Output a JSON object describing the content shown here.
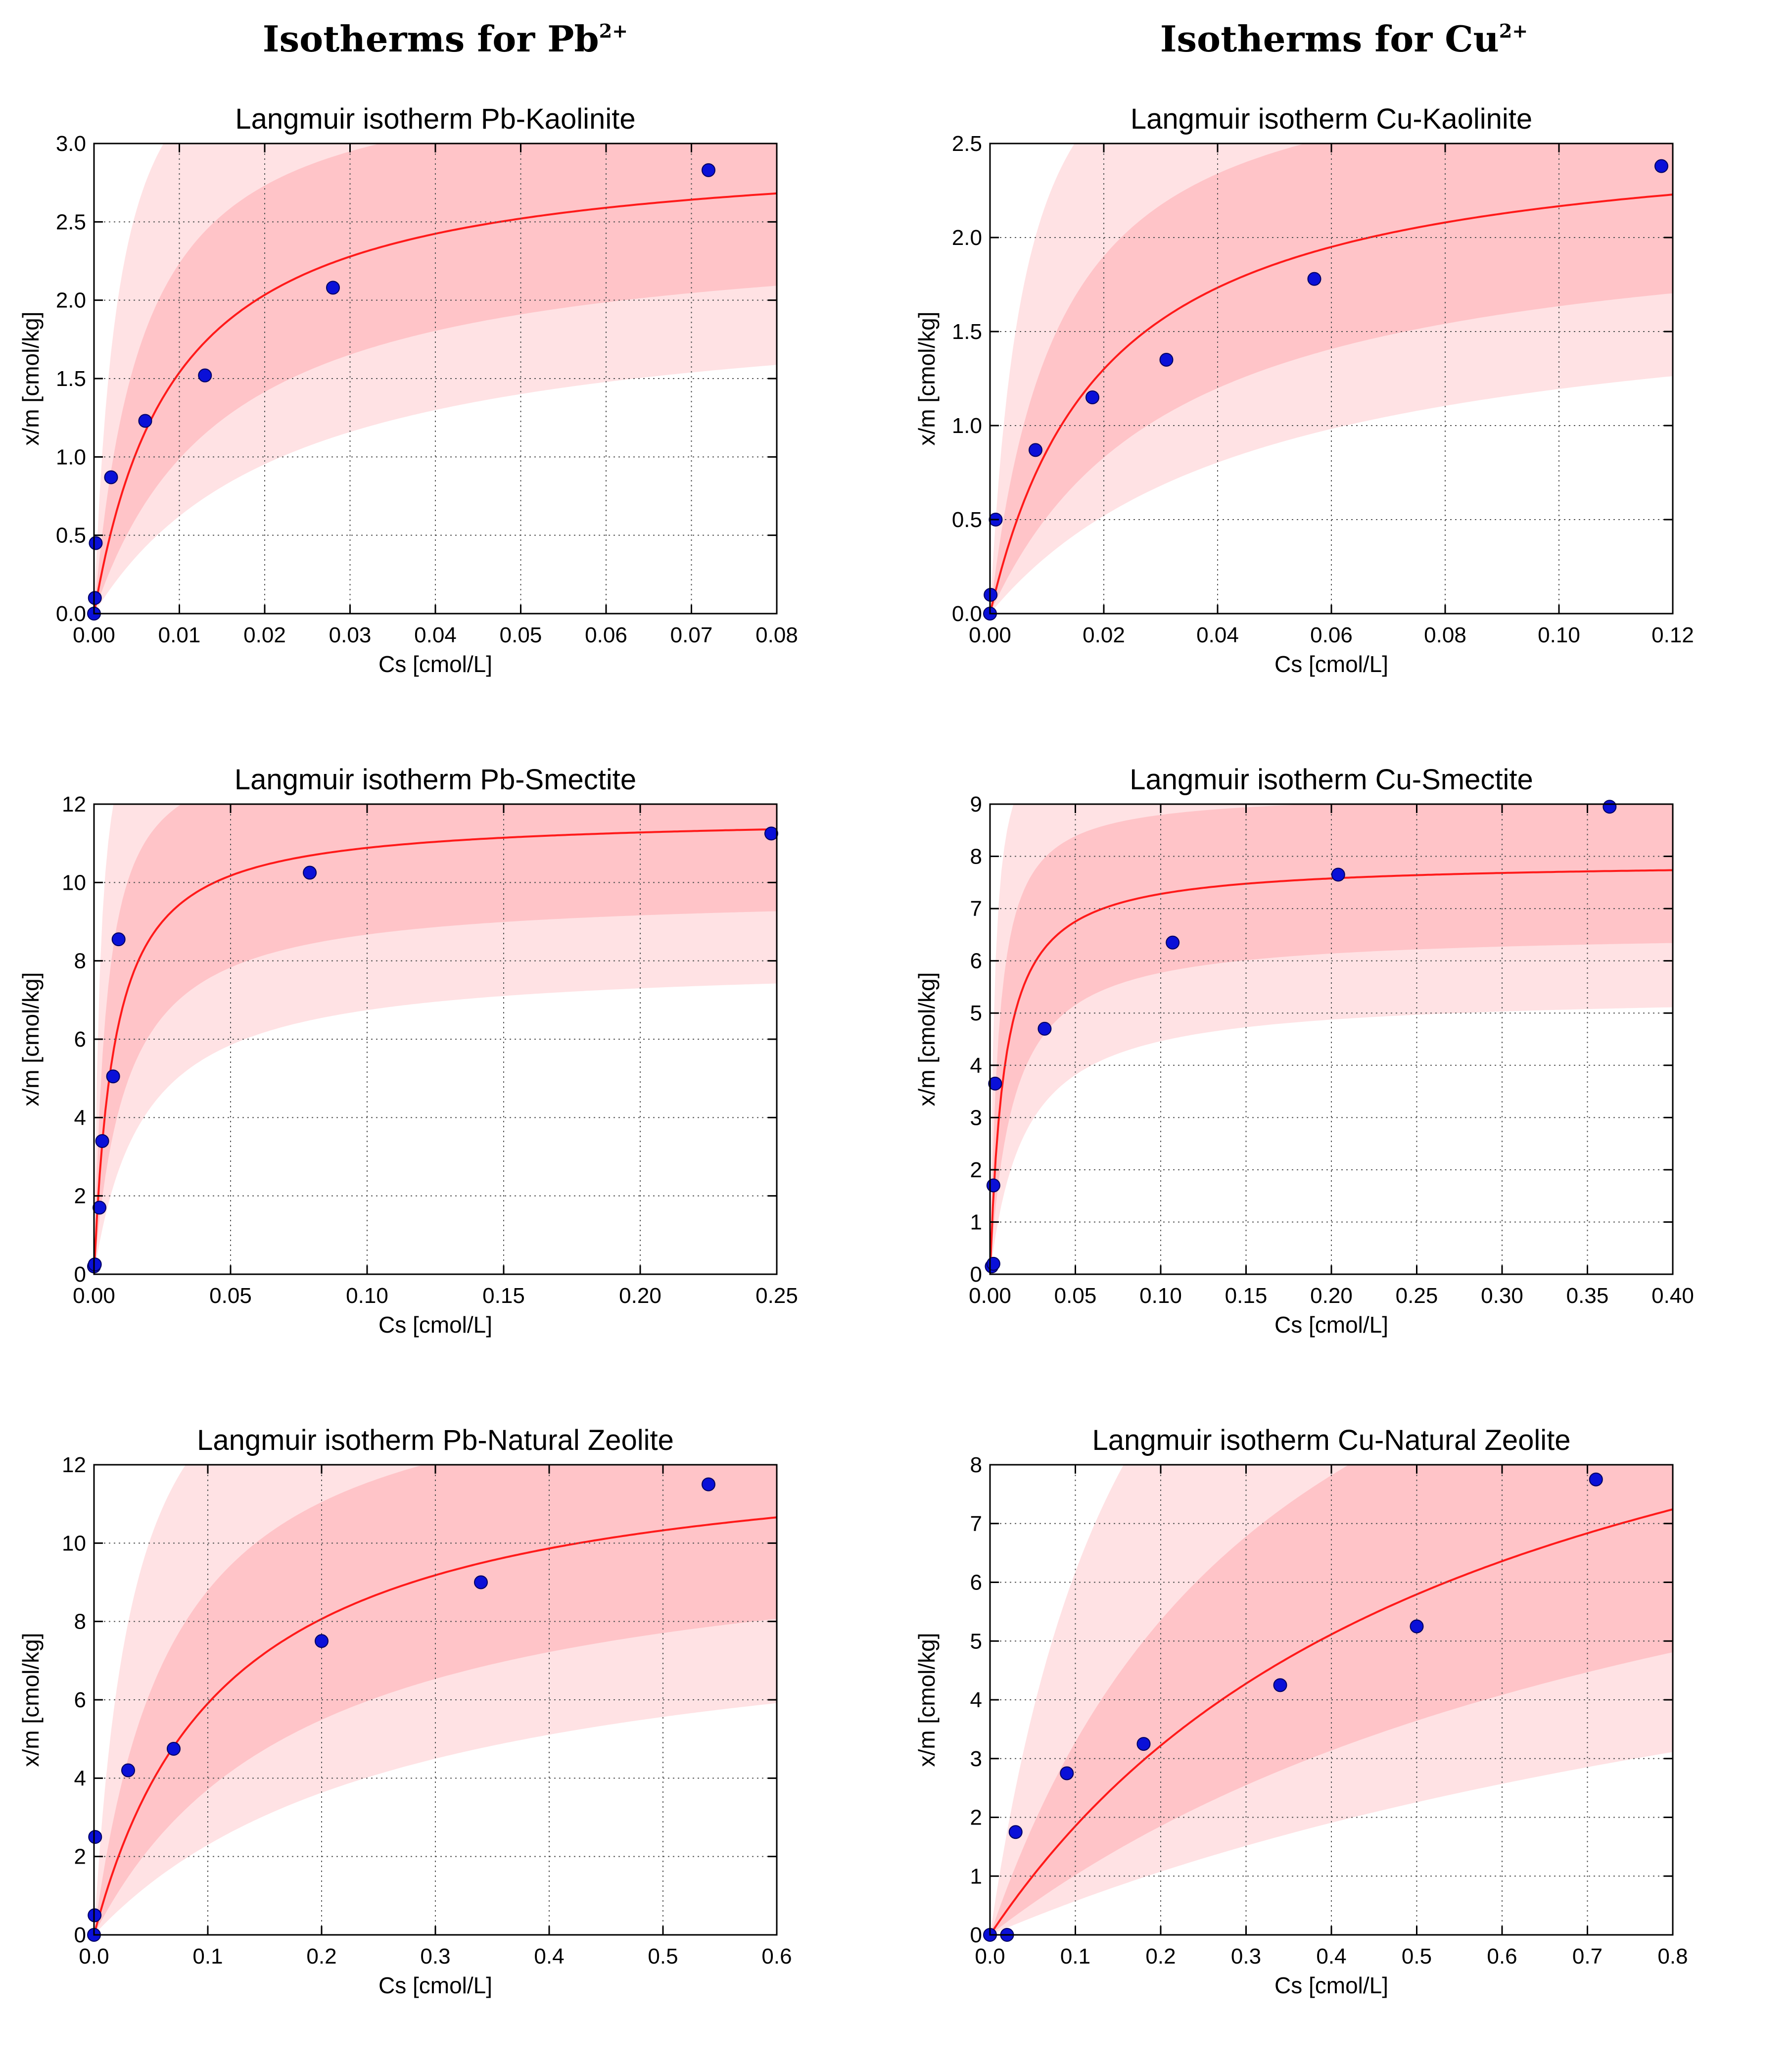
{
  "columns": {
    "pb": {
      "prefix": "Isotherms for Pb",
      "sup": "2+"
    },
    "cu": {
      "prefix": "Isotherms for Cu",
      "sup": "2+"
    }
  },
  "colors": {
    "fit_line": "#ff1a1a",
    "inner_band": "#ffc4c8",
    "outer_band": "#ffe2e4",
    "points": "#0a10d8",
    "point_edge": "#000060",
    "grid": "#555555"
  },
  "chart_data": [
    {
      "type": "scatter",
      "title": "Langmuir isotherm Pb-Kaolinite",
      "xlabel": "Cs [cmol/L]",
      "ylabel": "x/m [cmol/kg]",
      "xlim": [
        0,
        0.08
      ],
      "ylim": [
        0,
        3.0
      ],
      "xticks": [
        "0.00",
        "0.01",
        "0.02",
        "0.03",
        "0.04",
        "0.05",
        "0.06",
        "0.07",
        "0.08"
      ],
      "yticks": [
        "0.0",
        "0.5",
        "1.0",
        "1.5",
        "2.0",
        "2.5",
        "3.0"
      ],
      "grid": true,
      "points": {
        "x": [
          0.0,
          0.0001,
          0.0002,
          0.002,
          0.006,
          0.013,
          0.028,
          0.072
        ],
        "y": [
          0.0,
          0.1,
          0.45,
          0.87,
          1.23,
          1.52,
          2.08,
          2.83
        ]
      },
      "fit": {
        "qmax": 3.0,
        "k": 0.0095
      }
    },
    {
      "type": "scatter",
      "title": "Langmuir isotherm Cu-Kaolinite",
      "xlabel": "Cs [cmol/L]",
      "ylabel": "x/m [cmol/kg]",
      "xlim": [
        0,
        0.12
      ],
      "ylim": [
        0,
        2.5
      ],
      "xticks": [
        "0.00",
        "0.02",
        "0.04",
        "0.06",
        "0.08",
        "0.10",
        "0.12"
      ],
      "yticks": [
        "0.0",
        "0.5",
        "1.0",
        "1.5",
        "2.0",
        "2.5"
      ],
      "grid": true,
      "points": {
        "x": [
          0.0,
          0.0001,
          0.001,
          0.008,
          0.018,
          0.031,
          0.057,
          0.118
        ],
        "y": [
          0.0,
          0.1,
          0.5,
          0.87,
          1.15,
          1.35,
          1.78,
          2.38
        ]
      },
      "fit": {
        "qmax": 2.6,
        "k": 0.02
      }
    },
    {
      "type": "scatter",
      "title": "Langmuir isotherm Pb-Smectite",
      "xlabel": "Cs [cmol/L]",
      "ylabel": "x/m [cmol/kg]",
      "xlim": [
        0,
        0.25
      ],
      "ylim": [
        0,
        12
      ],
      "xticks": [
        "0.00",
        "0.05",
        "0.10",
        "0.15",
        "0.20",
        "0.25"
      ],
      "yticks": [
        "0",
        "2",
        "4",
        "6",
        "8",
        "10",
        "12"
      ],
      "grid": true,
      "points": {
        "x": [
          0.0,
          0.0003,
          0.002,
          0.003,
          0.007,
          0.009,
          0.079,
          0.248
        ],
        "y": [
          0.2,
          0.25,
          1.7,
          3.4,
          5.05,
          8.55,
          10.25,
          11.25
        ]
      },
      "fit": {
        "qmax": 11.7,
        "k": 0.0075
      }
    },
    {
      "type": "scatter",
      "title": "Langmuir isotherm Cu-Smectite",
      "xlabel": "Cs [cmol/L]",
      "ylabel": "x/m [cmol/kg]",
      "xlim": [
        0,
        0.4
      ],
      "ylim": [
        0,
        9
      ],
      "xticks": [
        "0.00",
        "0.05",
        "0.10",
        "0.15",
        "0.20",
        "0.25",
        "0.30",
        "0.35",
        "0.40"
      ],
      "yticks": [
        "0",
        "1",
        "2",
        "3",
        "4",
        "5",
        "6",
        "7",
        "8",
        "9"
      ],
      "grid": true,
      "points": {
        "x": [
          0.001,
          0.002,
          0.002,
          0.003,
          0.032,
          0.107,
          0.204,
          0.363
        ],
        "y": [
          0.15,
          0.2,
          1.7,
          3.65,
          4.7,
          6.35,
          7.65,
          8.95
        ]
      },
      "fit": {
        "qmax": 7.9,
        "k": 0.0085
      }
    },
    {
      "type": "scatter",
      "title": "Langmuir isotherm Pb-Natural Zeolite",
      "xlabel": "Cs [cmol/L]",
      "ylabel": "x/m [cmol/kg]",
      "xlim": [
        0,
        0.6
      ],
      "ylim": [
        0,
        12
      ],
      "xticks": [
        "0.0",
        "0.1",
        "0.2",
        "0.3",
        "0.4",
        "0.5",
        "0.6"
      ],
      "yticks": [
        "0",
        "2",
        "4",
        "6",
        "8",
        "10",
        "12"
      ],
      "grid": true,
      "points": {
        "x": [
          0.0,
          0.0005,
          0.001,
          0.03,
          0.07,
          0.2,
          0.34,
          0.54
        ],
        "y": [
          0.0,
          0.5,
          2.5,
          4.2,
          4.75,
          7.5,
          9.0,
          11.5
        ]
      },
      "fit": {
        "qmax": 12.7,
        "k": 0.115
      }
    },
    {
      "type": "scatter",
      "title": "Langmuir isotherm Cu-Natural Zeolite",
      "xlabel": "Cs [cmol/L]",
      "ylabel": "x/m [cmol/kg]",
      "xlim": [
        0,
        0.8
      ],
      "ylim": [
        0,
        8
      ],
      "xticks": [
        "0.0",
        "0.1",
        "0.2",
        "0.3",
        "0.4",
        "0.5",
        "0.6",
        "0.7",
        "0.8"
      ],
      "yticks": [
        "0",
        "1",
        "2",
        "3",
        "4",
        "5",
        "6",
        "7",
        "8"
      ],
      "grid": true,
      "points": {
        "x": [
          0.0,
          0.02,
          0.03,
          0.09,
          0.18,
          0.34,
          0.5,
          0.71
        ],
        "y": [
          0.0,
          0.0,
          1.75,
          2.75,
          3.25,
          4.25,
          5.25,
          7.75
        ]
      },
      "fit": {
        "qmax": 12.4,
        "k": 0.57
      }
    }
  ]
}
